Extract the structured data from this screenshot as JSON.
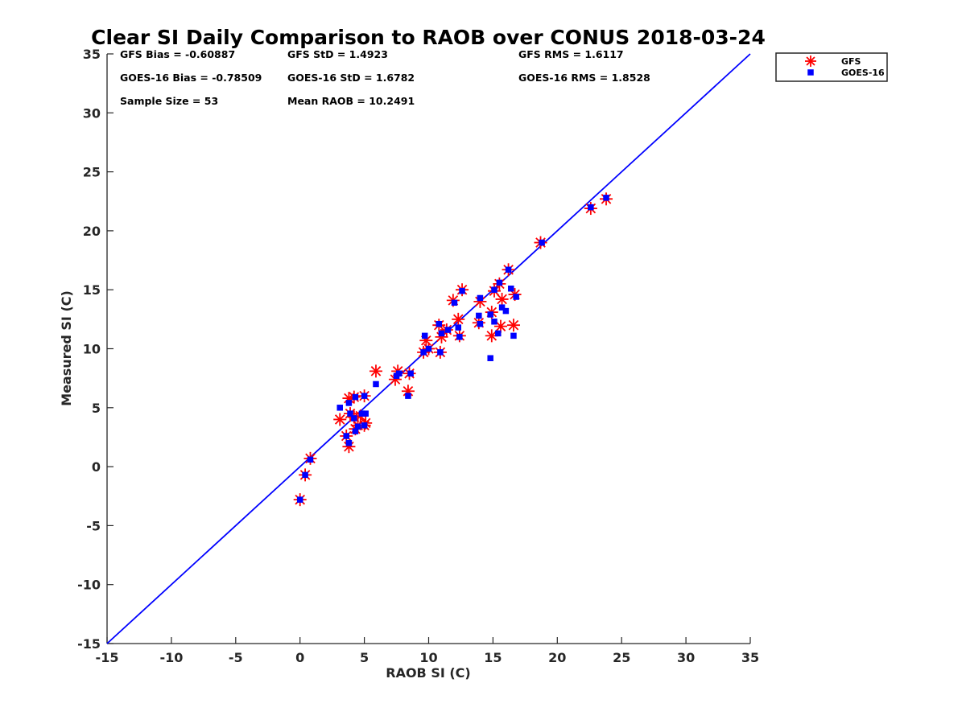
{
  "chart_data": {
    "type": "scatter",
    "title": "Clear SI Daily Comparison to RAOB over CONUS 2018-03-24",
    "xlabel": "RAOB SI (C)",
    "ylabel": "Measured SI (C)",
    "xlim": [
      -15,
      35
    ],
    "ylim": [
      -15,
      35
    ],
    "xticks": [
      "-15",
      "-10",
      "-5",
      "0",
      "5",
      "10",
      "15",
      "20",
      "25",
      "30",
      "35"
    ],
    "yticks": [
      "-15",
      "-10",
      "-5",
      "0",
      "5",
      "10",
      "15",
      "20",
      "25",
      "30",
      "35"
    ],
    "grid": false,
    "legend_position": "top-right outside",
    "one_to_one_line": true,
    "stats": [
      [
        "GFS Bias = -0.60887",
        "GFS StD = 1.4923",
        "GFS RMS = 1.6117"
      ],
      [
        "GOES-16 Bias = -0.78509",
        "GOES-16 StD = 1.6782",
        "GOES-16 RMS = 1.8528"
      ],
      [
        "Sample Size = 53",
        "Mean RAOB = 10.2491",
        ""
      ]
    ],
    "colors": {
      "gfs": "#ff0000",
      "goes": "#0000ff",
      "line": "#0000ff"
    },
    "series": [
      {
        "name": "GFS",
        "marker": "asterisk",
        "points": [
          [
            0.0,
            -2.8
          ],
          [
            0.4,
            -0.7
          ],
          [
            0.8,
            0.7
          ],
          [
            3.1,
            4.0
          ],
          [
            3.6,
            2.6
          ],
          [
            3.8,
            1.7
          ],
          [
            3.8,
            5.8
          ],
          [
            3.9,
            4.5
          ],
          [
            4.2,
            4.2
          ],
          [
            4.2,
            5.9
          ],
          [
            4.3,
            3.2
          ],
          [
            4.5,
            3.5
          ],
          [
            4.7,
            4.3
          ],
          [
            5.0,
            3.5
          ],
          [
            5.0,
            6.0
          ],
          [
            5.1,
            3.7
          ],
          [
            5.9,
            8.1
          ],
          [
            7.4,
            7.4
          ],
          [
            7.6,
            8.1
          ],
          [
            8.4,
            6.4
          ],
          [
            8.5,
            7.9
          ],
          [
            9.6,
            9.7
          ],
          [
            9.8,
            10.7
          ],
          [
            10.0,
            10.0
          ],
          [
            10.8,
            12.0
          ],
          [
            10.9,
            9.7
          ],
          [
            11.0,
            11.0
          ],
          [
            11.4,
            11.6
          ],
          [
            11.9,
            14.1
          ],
          [
            12.3,
            12.5
          ],
          [
            12.4,
            11.1
          ],
          [
            12.6,
            15.0
          ],
          [
            13.9,
            12.2
          ],
          [
            14.0,
            14.0
          ],
          [
            14.9,
            11.1
          ],
          [
            14.9,
            13.1
          ],
          [
            15.1,
            14.9
          ],
          [
            15.5,
            15.5
          ],
          [
            15.6,
            11.9
          ],
          [
            15.7,
            14.2
          ],
          [
            16.2,
            16.7
          ],
          [
            16.6,
            12.0
          ],
          [
            16.7,
            14.6
          ],
          [
            18.7,
            19.0
          ],
          [
            22.6,
            21.9
          ],
          [
            23.8,
            22.7
          ]
        ]
      },
      {
        "name": "GOES-16",
        "marker": "square",
        "points": [
          [
            0.0,
            -2.8
          ],
          [
            0.4,
            -0.7
          ],
          [
            0.8,
            0.6
          ],
          [
            3.1,
            5.0
          ],
          [
            3.6,
            2.6
          ],
          [
            3.8,
            2.0
          ],
          [
            3.8,
            5.4
          ],
          [
            3.9,
            4.5
          ],
          [
            4.2,
            4.1
          ],
          [
            4.3,
            5.9
          ],
          [
            4.3,
            3.0
          ],
          [
            4.5,
            3.4
          ],
          [
            4.8,
            4.5
          ],
          [
            5.0,
            3.5
          ],
          [
            5.0,
            6.0
          ],
          [
            5.1,
            4.5
          ],
          [
            5.9,
            7.0
          ],
          [
            7.5,
            7.7
          ],
          [
            7.7,
            7.9
          ],
          [
            8.4,
            6.0
          ],
          [
            8.6,
            7.9
          ],
          [
            9.6,
            9.7
          ],
          [
            9.7,
            11.1
          ],
          [
            10.0,
            10.0
          ],
          [
            10.8,
            12.1
          ],
          [
            10.9,
            9.7
          ],
          [
            11.0,
            11.3
          ],
          [
            11.5,
            11.6
          ],
          [
            12.0,
            13.9
          ],
          [
            12.3,
            11.8
          ],
          [
            12.4,
            11.0
          ],
          [
            12.6,
            14.9
          ],
          [
            13.9,
            12.8
          ],
          [
            14.0,
            12.1
          ],
          [
            14.0,
            14.3
          ],
          [
            14.8,
            12.9
          ],
          [
            14.8,
            9.2
          ],
          [
            15.1,
            12.3
          ],
          [
            15.1,
            15.0
          ],
          [
            15.4,
            11.3
          ],
          [
            15.5,
            15.6
          ],
          [
            15.7,
            13.5
          ],
          [
            16.0,
            13.2
          ],
          [
            16.2,
            16.7
          ],
          [
            16.4,
            15.1
          ],
          [
            16.6,
            11.1
          ],
          [
            16.8,
            14.4
          ],
          [
            18.8,
            19.0
          ],
          [
            22.6,
            22.0
          ],
          [
            23.8,
            22.8
          ]
        ]
      }
    ]
  }
}
